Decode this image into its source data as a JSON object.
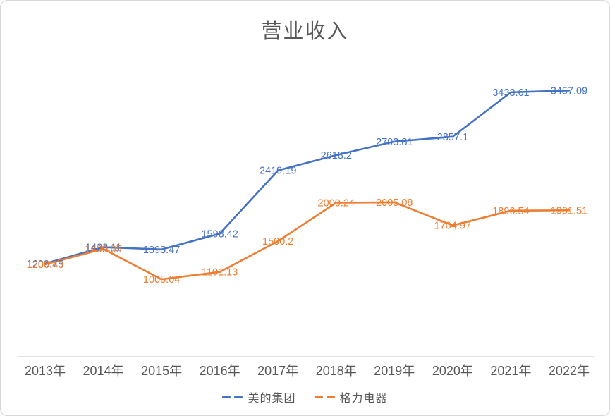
{
  "chart_data": {
    "type": "line",
    "title": "营业收入",
    "categories": [
      "2013年",
      "2014年",
      "2015年",
      "2016年",
      "2017年",
      "2018年",
      "2019年",
      "2020年",
      "2021年",
      "2022年"
    ],
    "series": [
      {
        "name": "美的集团",
        "color": "#4472C4",
        "values": [
          1209.75,
          1423.11,
          1393.47,
          1598.42,
          2419.19,
          2618.2,
          2793.81,
          2857.1,
          3433.61,
          3457.09
        ]
      },
      {
        "name": "格力电器",
        "color": "#ED7D31",
        "values": [
          1200.43,
          1400.05,
          1005.64,
          1101.13,
          1500.2,
          2000.24,
          2005.08,
          1704.97,
          1896.54,
          1901.51
        ]
      }
    ],
    "ylim": [
      0,
      4000
    ],
    "xlabel": "",
    "ylabel": "",
    "grid": false,
    "legend_position": "bottom",
    "data_labels": "center",
    "axis_line_color": "#d9d9d9",
    "tick_label_color": "#595959",
    "title_color": "#595959"
  }
}
